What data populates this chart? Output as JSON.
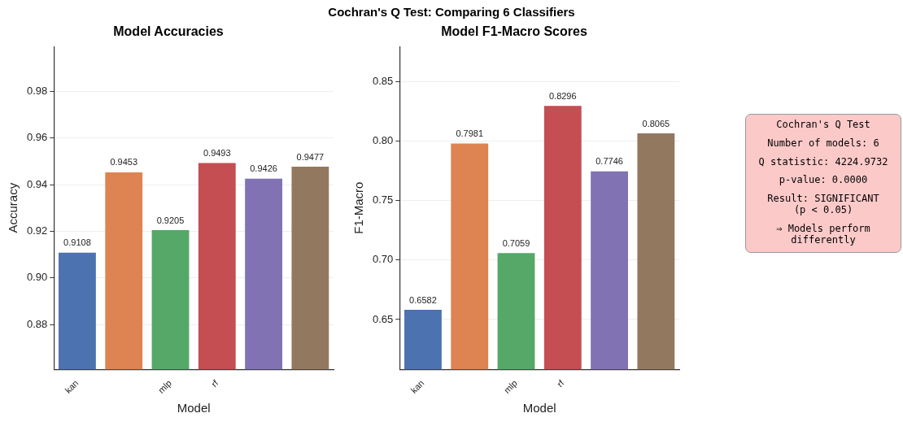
{
  "chart_data": [
    {
      "type": "bar",
      "title": "Model Accuracies",
      "annotations": [
        "Cochran's Q Test: Comparing 6 Classifiers"
      ],
      "xlabel": "Model",
      "ylabel": "Accuracy",
      "categories": [
        "kan",
        null,
        "mlp",
        "rf",
        null,
        null
      ],
      "values": [
        0.9108,
        0.9453,
        0.9205,
        0.9493,
        0.9426,
        0.9477
      ],
      "colors": [
        "#4c72b0",
        "#dd8452",
        "#55a868",
        "#c44e52",
        "#8172b3",
        "#937860"
      ],
      "ylim": [
        0.8608,
        0.9993
      ],
      "yticks": [
        0.88,
        {
          "value": 0.9,
          "label": "0.90"
        },
        0.92,
        0.94,
        0.96,
        0.98
      ],
      "grid": "y",
      "data_labels": true
    },
    {
      "type": "bar",
      "title": "Model F1-Macro Scores",
      "xlabel": "Model",
      "ylabel": "F1-Macro",
      "categories": [
        "kan",
        null,
        "mlp",
        "rf",
        null,
        null
      ],
      "values": [
        0.6582,
        0.7981,
        0.7059,
        0.8296,
        0.7746,
        0.8065
      ],
      "colors": [
        "#4c72b0",
        "#dd8452",
        "#55a868",
        "#c44e52",
        "#8172b3",
        "#937860"
      ],
      "ylim": [
        0.6082,
        0.8796
      ],
      "yticks": [
        0.65,
        {
          "value": 0.7,
          "label": "0.70"
        },
        0.75,
        {
          "value": 0.8,
          "label": "0.80"
        },
        0.85
      ],
      "grid": "y",
      "data_labels": true
    },
    {
      "type": "other",
      "title": "Cochran's Q Test",
      "annotations": [
        "Number of models: 6",
        "Q statistic: 4224.9732",
        "p-value: 0.0000",
        "Result: SIGNIFICANT\n(p < 0.05)",
        "⇒ Models perform\ndifferently"
      ]
    }
  ]
}
